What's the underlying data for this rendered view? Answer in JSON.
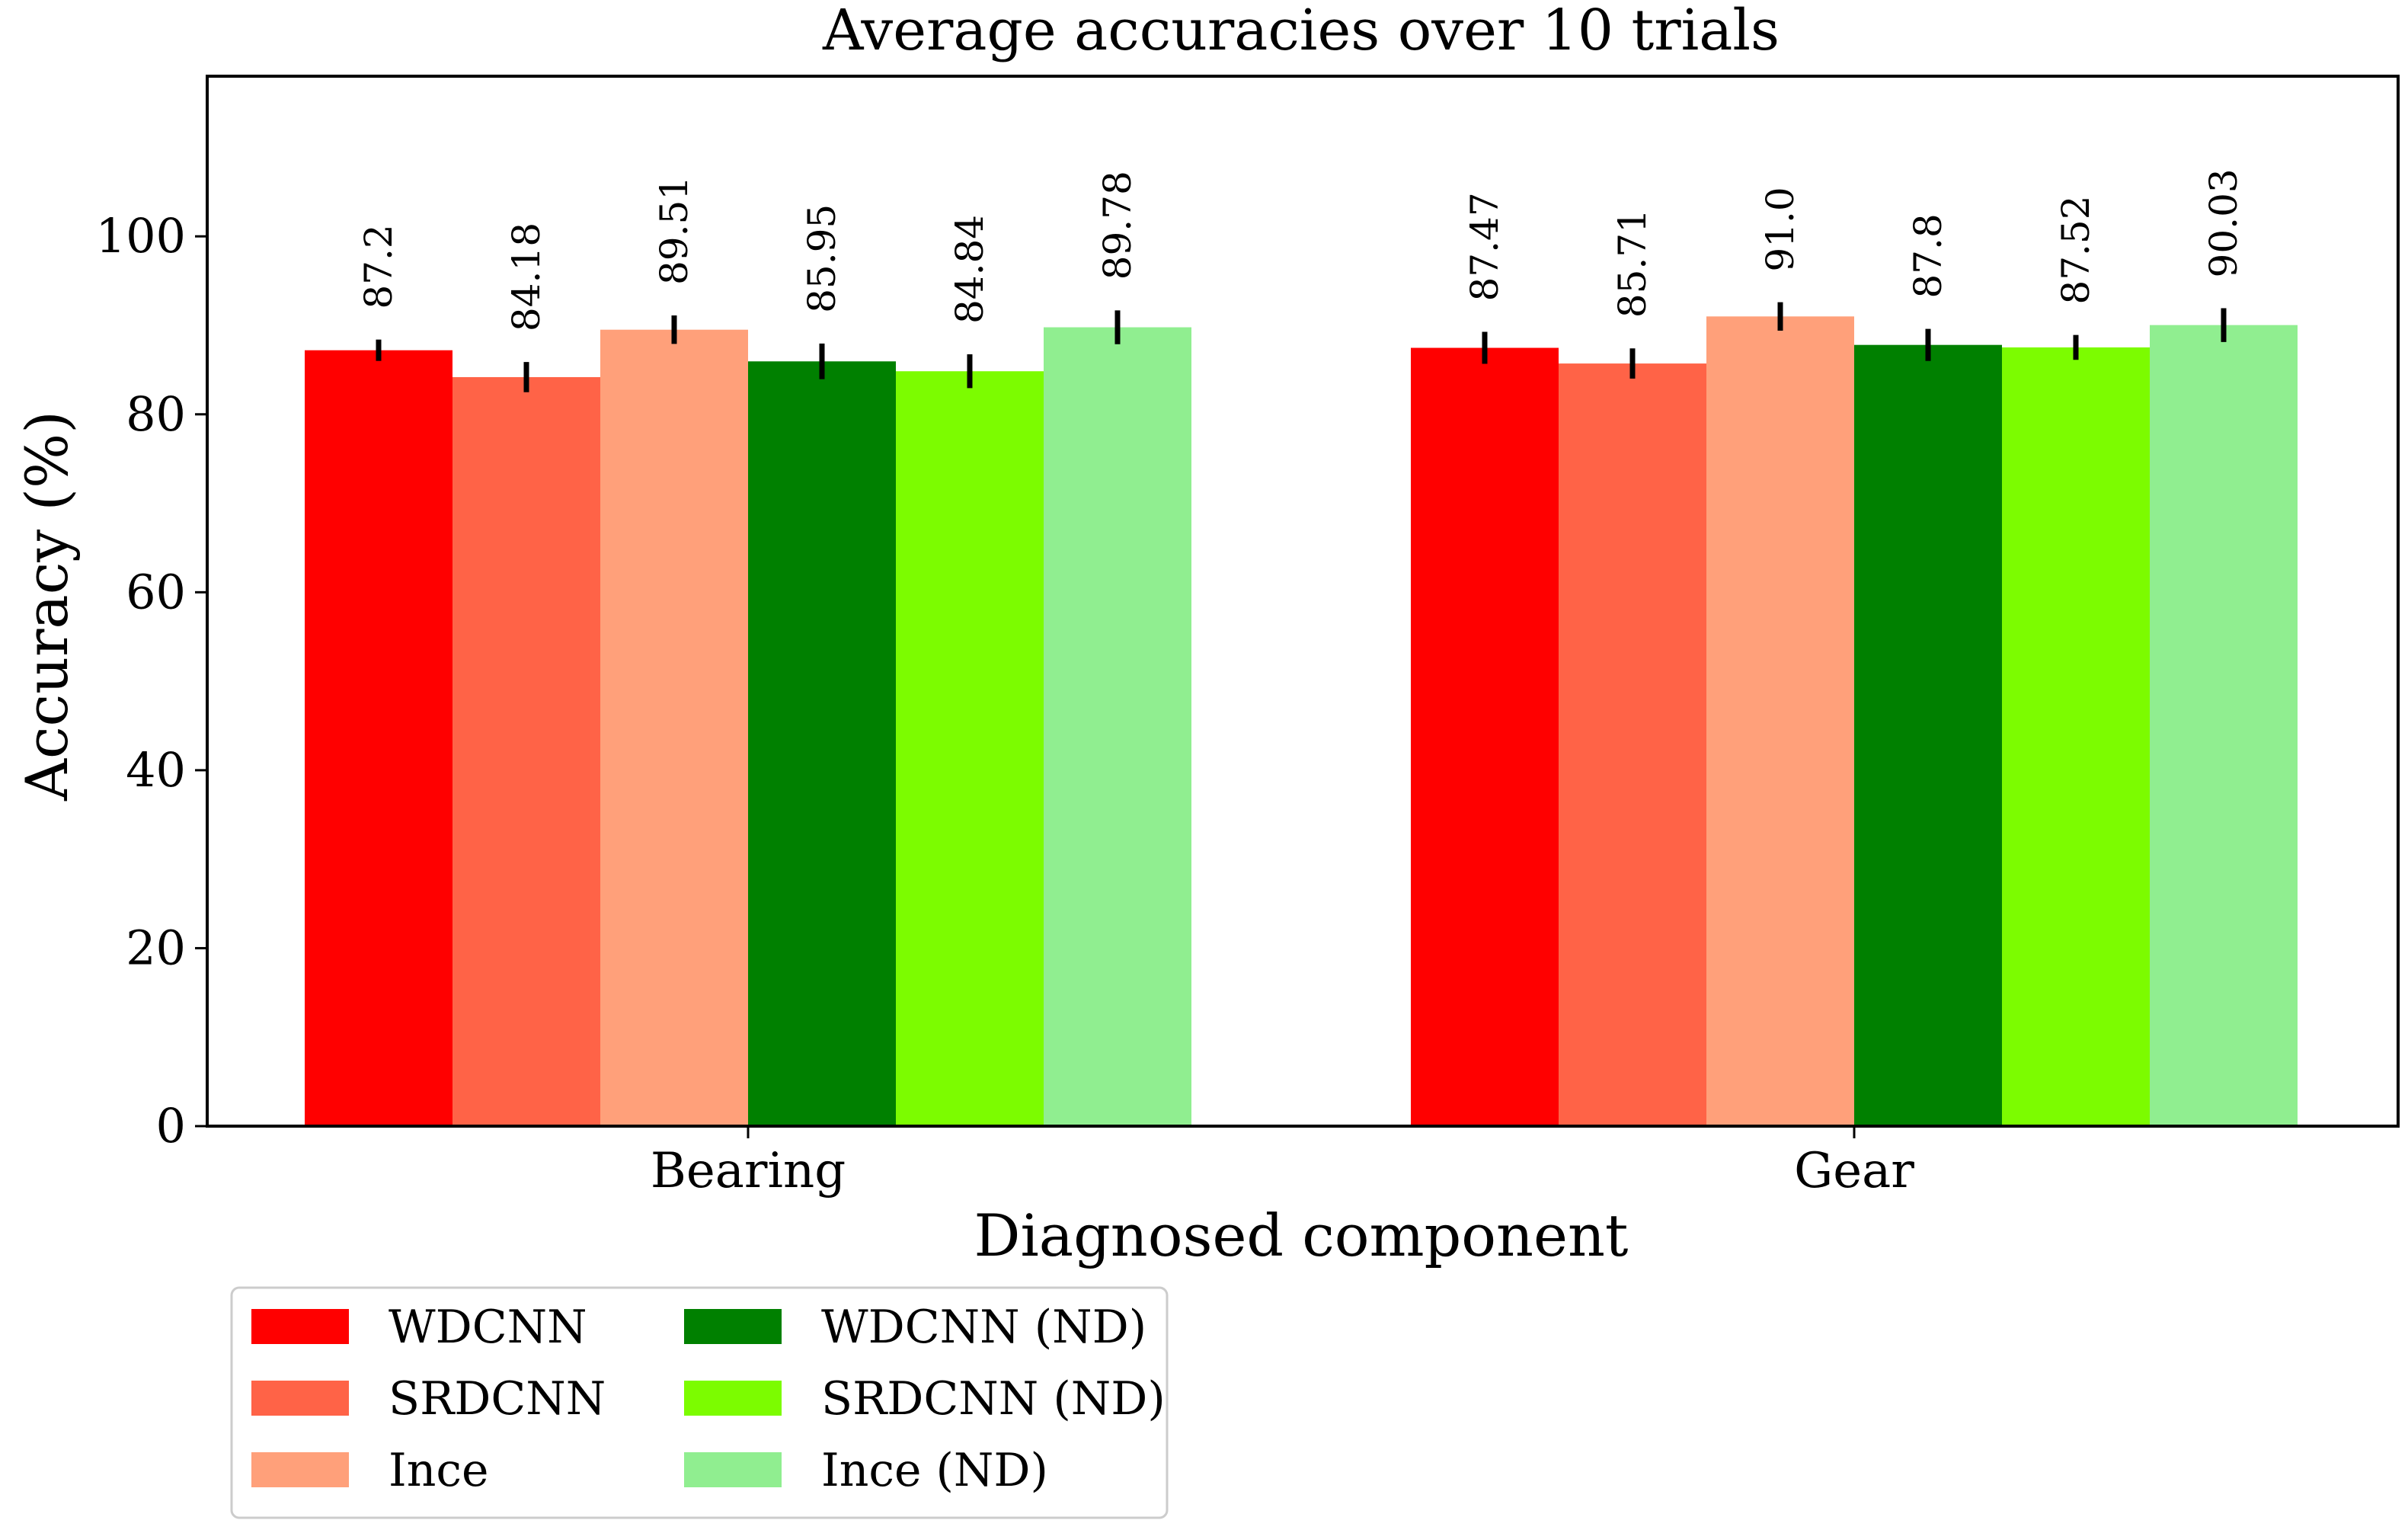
{
  "chart_data": {
    "type": "bar",
    "title": "Average accuracies over 10 trials",
    "xlabel": "Diagnosed component",
    "ylabel": "Accuracy (%)",
    "ylim": [
      0,
      118
    ],
    "yticks": [
      0,
      20,
      40,
      60,
      80,
      100
    ],
    "categories": [
      "Bearing",
      "Gear"
    ],
    "series": [
      {
        "name": "WDCNN",
        "color": "#ff0000",
        "values": [
          87.2,
          87.47
        ],
        "errors": [
          1.2,
          1.8
        ],
        "labels": [
          "87.2",
          "87.47"
        ]
      },
      {
        "name": "SRDCNN",
        "color": "#ff6347",
        "values": [
          84.18,
          85.71
        ],
        "errors": [
          1.7,
          1.7
        ],
        "labels": [
          "84.18",
          "85.71"
        ]
      },
      {
        "name": "Ince",
        "color": "#ffa07a",
        "values": [
          89.51,
          91.0
        ],
        "errors": [
          1.6,
          1.6
        ],
        "labels": [
          "89.51",
          "91.0"
        ]
      },
      {
        "name": "WDCNN (ND)",
        "color": "#008000",
        "values": [
          85.95,
          87.8
        ],
        "errors": [
          2.0,
          1.8
        ],
        "labels": [
          "85.95",
          "87.8"
        ]
      },
      {
        "name": "SRDCNN (ND)",
        "color": "#7cfc00",
        "values": [
          84.84,
          87.52
        ],
        "errors": [
          1.9,
          1.4
        ],
        "labels": [
          "84.84",
          "87.52"
        ]
      },
      {
        "name": "Ince (ND)",
        "color": "#90ee90",
        "values": [
          89.78,
          90.03
        ],
        "errors": [
          1.9,
          1.9
        ],
        "labels": [
          "89.78",
          "90.03"
        ]
      }
    ],
    "legend": {
      "placement": "bottom-left, below axes",
      "columns": 2
    },
    "grid": false
  }
}
